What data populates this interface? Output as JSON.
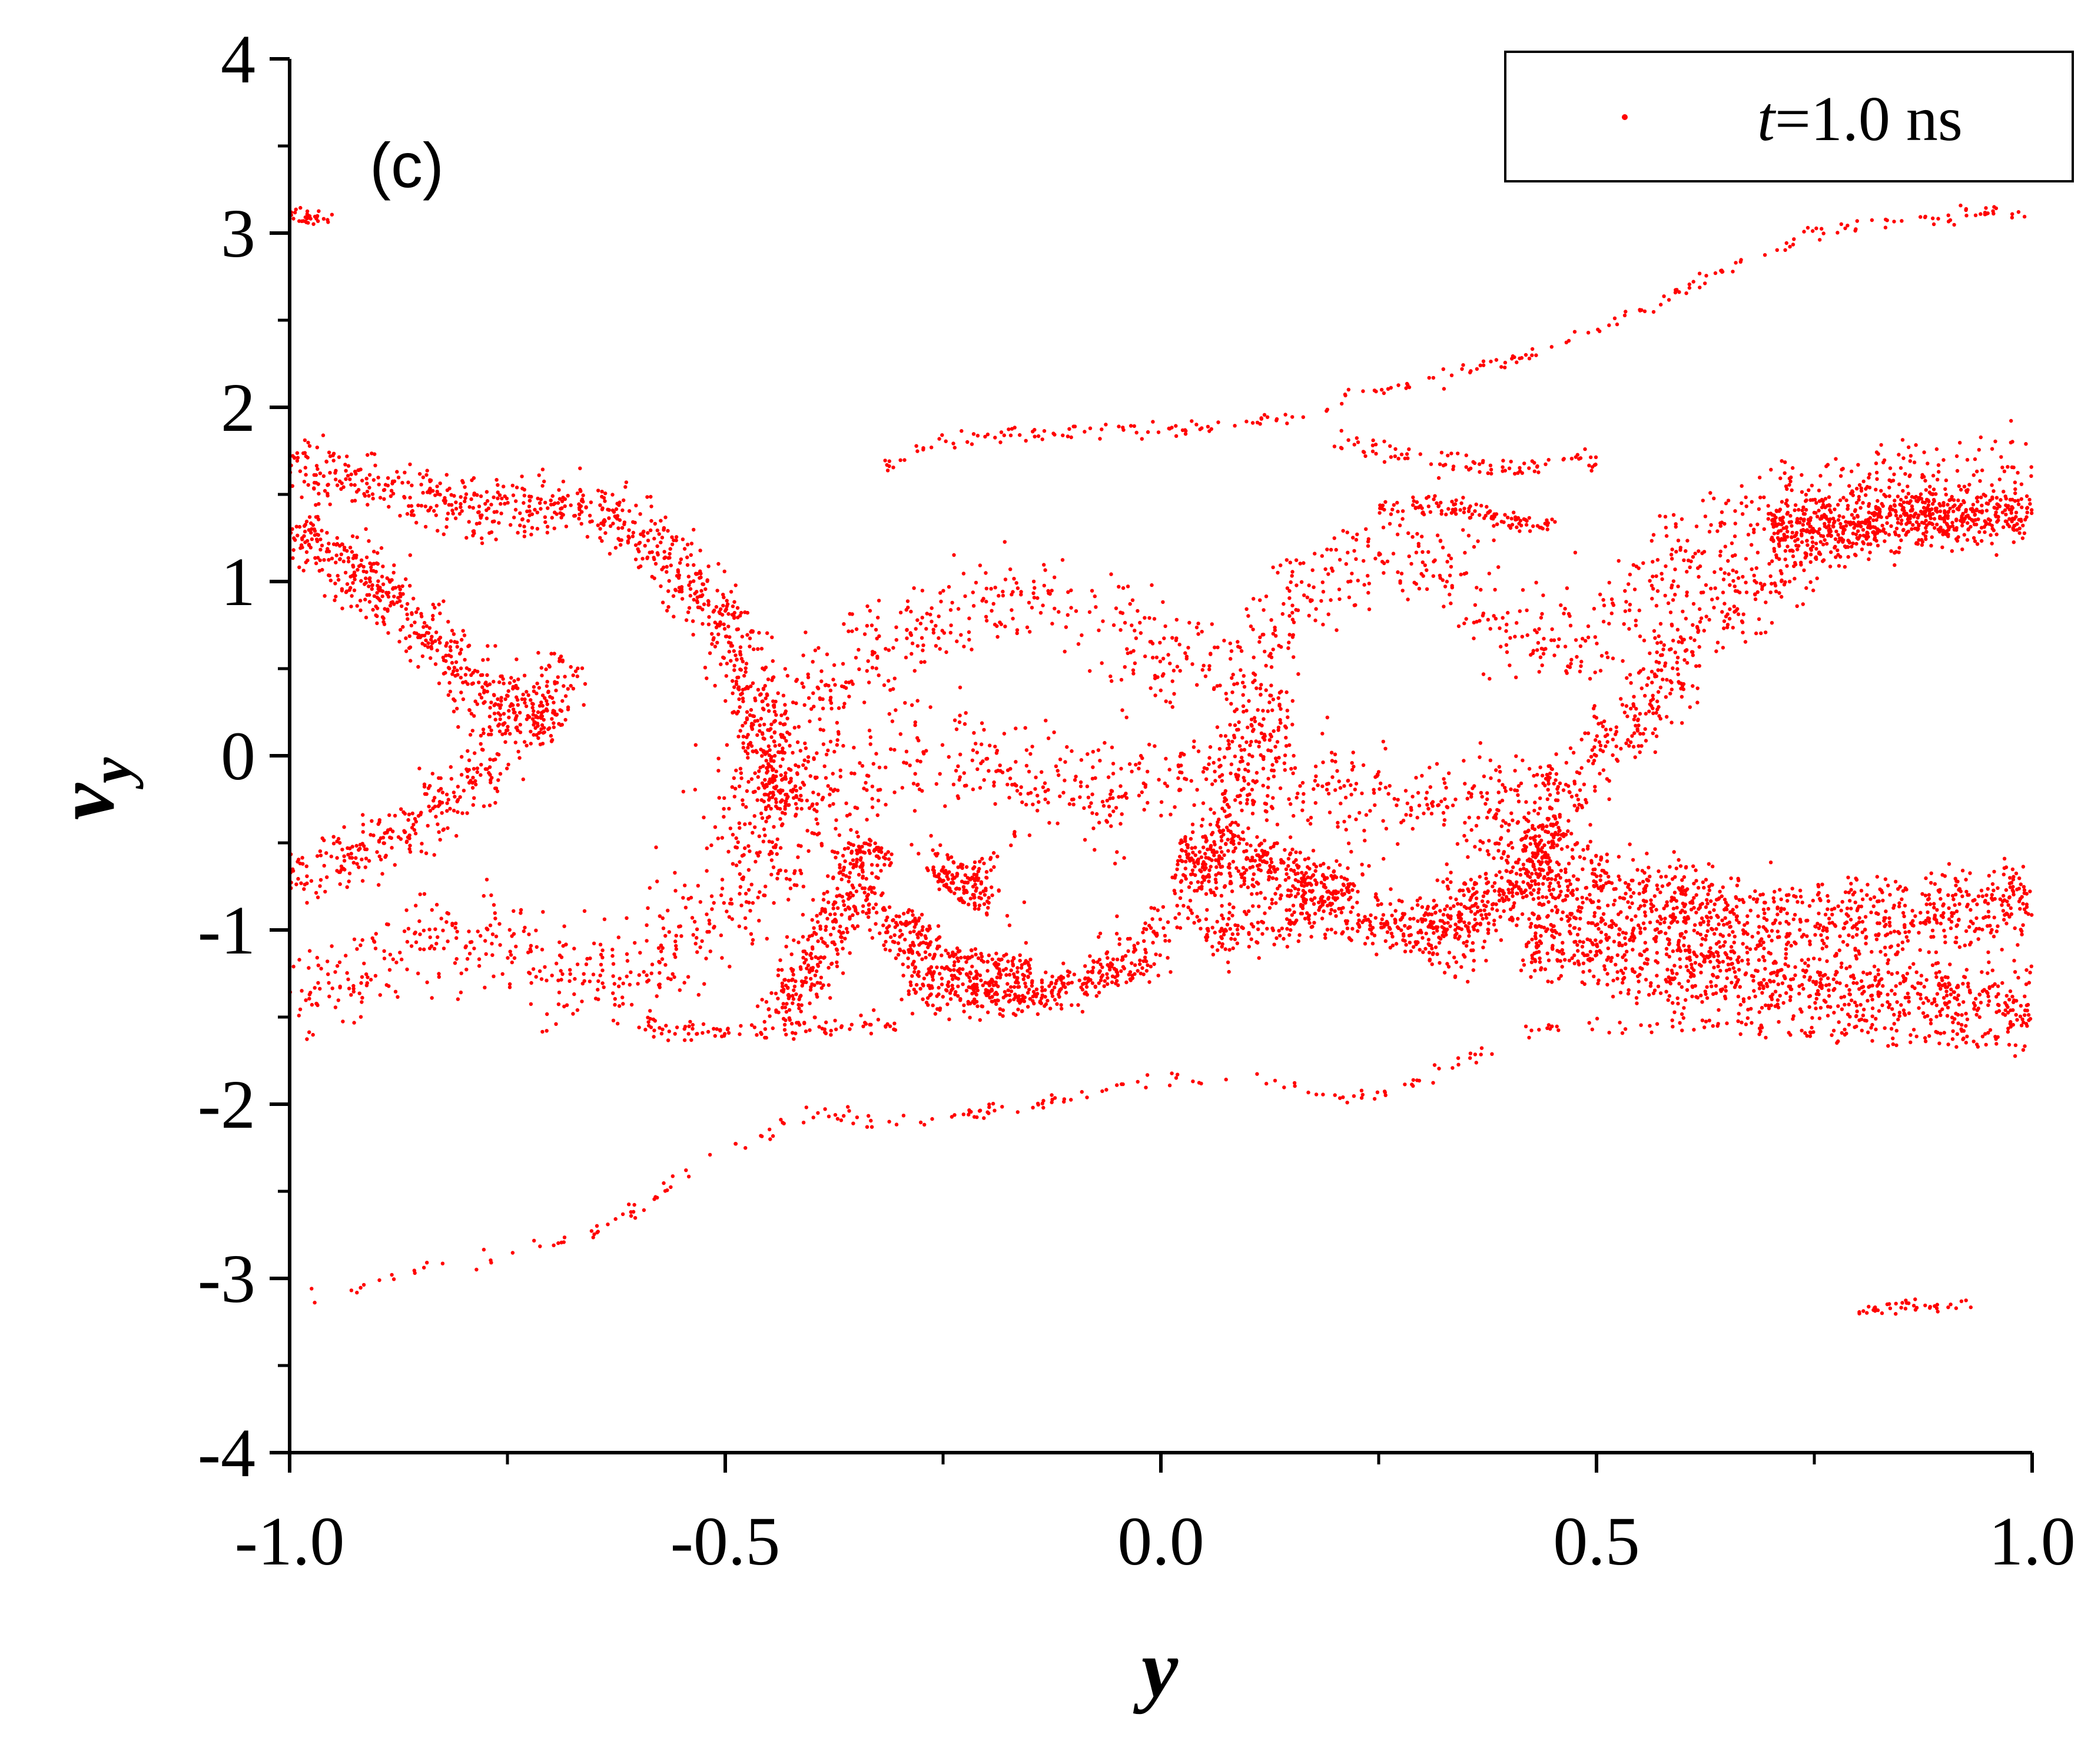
{
  "chart_data": {
    "type": "scatter",
    "panel_label": "(c)",
    "xlabel": "y",
    "ylabel": {
      "main": "v",
      "subscript": "y"
    },
    "xlim": [
      -1.0,
      1.0
    ],
    "ylim": [
      -4,
      4
    ],
    "x_ticks": [
      "-1.0",
      "-0.5",
      "0.0",
      "0.5",
      "1.0"
    ],
    "x_tick_values": [
      -1.0,
      -0.5,
      0.0,
      0.5,
      1.0
    ],
    "y_ticks": [
      "4",
      "3",
      "2",
      "1",
      "0",
      "-1",
      "-2",
      "-3",
      "-4"
    ],
    "y_tick_values": [
      4,
      3,
      2,
      1,
      0,
      -1,
      -2,
      -3,
      -4
    ],
    "grid": false,
    "legend_position": "top-right",
    "color": "#ff0000",
    "series": [
      {
        "name": "t=1.0 ns",
        "legend_italic_part": "t",
        "legend_rest": "=1.0 ns",
        "bands": [
          {
            "w": 0.04,
            "n": 900,
            "path": [
              [
                -1.0,
                1.68
              ],
              [
                -0.9,
                1.55
              ],
              [
                -0.8,
                1.4
              ],
              [
                -0.73,
                1.42
              ],
              [
                -0.66,
                1.45
              ],
              [
                -0.6,
                1.3
              ],
              [
                -0.55,
                1.05
              ],
              [
                -0.49,
                0.7
              ],
              [
                -0.46,
                0.35
              ],
              [
                -0.44,
                -0.1
              ],
              [
                -0.43,
                -0.35
              ]
            ]
          },
          {
            "w": 0.04,
            "n": 500,
            "path": [
              [
                -1.0,
                1.3
              ],
              [
                -0.93,
                1.1
              ],
              [
                -0.86,
                0.8
              ],
              [
                -0.8,
                0.5
              ],
              [
                -0.76,
                0.3
              ],
              [
                -0.69,
                0.15
              ]
            ]
          },
          {
            "w": 0.04,
            "n": 350,
            "path": [
              [
                -1.0,
                -0.75
              ],
              [
                -0.92,
                -0.55
              ],
              [
                -0.85,
                -0.4
              ],
              [
                -0.78,
                -0.1
              ],
              [
                -0.72,
                0.3
              ],
              [
                -0.68,
                0.55
              ]
            ]
          },
          {
            "w": 0.07,
            "n": 1100,
            "path": [
              [
                -1.0,
                -1.35
              ],
              [
                -0.9,
                -1.25
              ],
              [
                -0.8,
                -1.0
              ],
              [
                -0.72,
                -1.1
              ],
              [
                -0.65,
                -1.4
              ],
              [
                -0.6,
                -1.3
              ],
              [
                -0.55,
                -1.1
              ],
              [
                -0.5,
                -0.8
              ],
              [
                -0.45,
                -0.55
              ],
              [
                -0.4,
                -0.35
              ],
              [
                -0.35,
                -0.15
              ],
              [
                -0.3,
                0.05
              ],
              [
                -0.25,
                0.1
              ],
              [
                -0.2,
                0.05
              ],
              [
                -0.15,
                -0.15
              ],
              [
                -0.1,
                -0.3
              ],
              [
                -0.05,
                -0.25
              ],
              [
                0.0,
                -0.1
              ],
              [
                0.05,
                0.0
              ],
              [
                0.1,
                -0.05
              ],
              [
                0.2,
                -0.2
              ],
              [
                0.3,
                -0.3
              ],
              [
                0.4,
                -0.25
              ],
              [
                0.45,
                -0.05
              ]
            ]
          },
          {
            "w": 0.06,
            "n": 1000,
            "path": [
              [
                -0.5,
                -0.5
              ],
              [
                -0.45,
                -0.05
              ],
              [
                -0.4,
                0.3
              ],
              [
                -0.35,
                0.55
              ],
              [
                -0.3,
                0.7
              ],
              [
                -0.25,
                0.8
              ],
              [
                -0.2,
                0.9
              ],
              [
                -0.15,
                0.95
              ],
              [
                -0.1,
                0.9
              ],
              [
                -0.05,
                0.75
              ],
              [
                0.0,
                0.55
              ],
              [
                0.05,
                0.45
              ],
              [
                0.1,
                0.55
              ],
              [
                0.15,
                0.85
              ],
              [
                0.2,
                1.1
              ],
              [
                0.25,
                1.2
              ],
              [
                0.3,
                1.2
              ],
              [
                0.35,
                1.0
              ],
              [
                0.4,
                0.7
              ],
              [
                0.45,
                0.55
              ],
              [
                0.5,
                0.7
              ],
              [
                0.55,
                0.95
              ],
              [
                0.6,
                1.15
              ],
              [
                0.65,
                1.3
              ],
              [
                0.7,
                1.45
              ],
              [
                0.75,
                1.55
              ],
              [
                0.8,
                1.6
              ],
              [
                0.9,
                1.65
              ],
              [
                1.0,
                1.65
              ]
            ]
          },
          {
            "w": 0.045,
            "n": 600,
            "path": [
              [
                0.7,
                1.3
              ],
              [
                0.8,
                1.35
              ],
              [
                0.9,
                1.4
              ],
              [
                1.0,
                1.35
              ]
            ]
          },
          {
            "w": 0.05,
            "n": 700,
            "path": [
              [
                0.3,
                -1.2
              ],
              [
                0.35,
                -0.9
              ],
              [
                0.4,
                -0.6
              ],
              [
                0.45,
                -0.3
              ],
              [
                0.5,
                0.0
              ],
              [
                0.55,
                0.3
              ],
              [
                0.6,
                0.6
              ],
              [
                0.65,
                0.85
              ],
              [
                0.7,
                1.05
              ],
              [
                0.75,
                1.2
              ],
              [
                0.8,
                1.3
              ],
              [
                0.9,
                1.4
              ]
            ]
          },
          {
            "w": 0.06,
            "n": 900,
            "path": [
              [
                0.42,
                -0.65
              ],
              [
                0.5,
                -0.75
              ],
              [
                0.6,
                -0.85
              ],
              [
                0.7,
                -0.95
              ],
              [
                0.8,
                -0.95
              ],
              [
                0.9,
                -0.9
              ],
              [
                1.0,
                -0.8
              ]
            ]
          },
          {
            "w": 0.06,
            "n": 900,
            "path": [
              [
                0.42,
                -1.05
              ],
              [
                0.5,
                -1.1
              ],
              [
                0.6,
                -1.2
              ],
              [
                0.7,
                -1.3
              ],
              [
                0.8,
                -1.38
              ],
              [
                0.9,
                -1.42
              ],
              [
                1.0,
                -1.45
              ]
            ]
          },
          {
            "w": 0.04,
            "n": 500,
            "path": [
              [
                -0.3,
                -1.3
              ],
              [
                -0.2,
                -1.4
              ],
              [
                -0.1,
                -1.3
              ],
              [
                0.0,
                -1.05
              ],
              [
                0.05,
                -0.75
              ],
              [
                0.08,
                -0.4
              ],
              [
                0.1,
                -0.05
              ],
              [
                0.12,
                0.3
              ],
              [
                0.13,
                0.4
              ]
            ]
          },
          {
            "w": 0.04,
            "n": 500,
            "path": [
              [
                0.05,
                -1.05
              ],
              [
                0.15,
                -0.9
              ],
              [
                0.25,
                -0.95
              ],
              [
                0.33,
                -1.0
              ],
              [
                0.4,
                -0.8
              ],
              [
                0.45,
                -0.4
              ]
            ]
          },
          {
            "w": 0.04,
            "n": 350,
            "path": [
              [
                0.02,
                -0.55
              ],
              [
                0.1,
                -0.6
              ],
              [
                0.17,
                -0.7
              ],
              [
                0.22,
                -0.8
              ]
            ]
          },
          {
            "w": 0.03,
            "n": 280,
            "path": [
              [
                -0.44,
                -1.5
              ],
              [
                -0.4,
                -1.2
              ],
              [
                -0.37,
                -0.9
              ],
              [
                -0.35,
                -0.6
              ],
              [
                -0.32,
                -0.5
              ]
            ]
          },
          {
            "w": 0.025,
            "n": 260,
            "path": [
              [
                -0.35,
                -0.5
              ],
              [
                -0.33,
                -0.9
              ],
              [
                -0.28,
                -1.2
              ],
              [
                -0.22,
                -1.35
              ],
              [
                -0.15,
                -1.4
              ],
              [
                -0.08,
                -1.3
              ],
              [
                -0.02,
                -1.15
              ]
            ]
          },
          {
            "w": 0.025,
            "n": 180,
            "path": [
              [
                -0.3,
                -0.9
              ],
              [
                -0.27,
                -1.1
              ],
              [
                -0.22,
                -1.2
              ],
              [
                -0.15,
                -1.22
              ]
            ]
          },
          {
            "w": 0.05,
            "n": 160,
            "path": [
              [
                -0.25,
                -0.75
              ],
              [
                -0.22,
                -0.65
              ],
              [
                -0.2,
                -0.7
              ],
              [
                -0.23,
                -0.85
              ]
            ]
          },
          {
            "w": 0.012,
            "n": 260,
            "path": [
              [
                -1.0,
                -3.15
              ],
              [
                -0.9,
                -3.0
              ],
              [
                -0.8,
                -2.9
              ],
              [
                -0.7,
                -2.8
              ],
              [
                -0.65,
                -2.75
              ],
              [
                -0.6,
                -2.6
              ],
              [
                -0.55,
                -2.4
              ],
              [
                -0.5,
                -2.25
              ],
              [
                -0.45,
                -2.15
              ],
              [
                -0.4,
                -2.05
              ],
              [
                -0.3,
                -2.1
              ],
              [
                -0.2,
                -2.05
              ],
              [
                -0.1,
                -1.95
              ],
              [
                0.0,
                -1.85
              ],
              [
                0.1,
                -1.85
              ],
              [
                0.2,
                -1.95
              ],
              [
                0.25,
                -1.95
              ],
              [
                0.3,
                -1.85
              ],
              [
                0.35,
                -1.75
              ],
              [
                0.4,
                -1.6
              ],
              [
                0.45,
                -1.55
              ],
              [
                0.5,
                -1.55
              ],
              [
                0.6,
                -1.55
              ],
              [
                0.7,
                -1.55
              ],
              [
                0.8,
                -1.6
              ],
              [
                0.9,
                -1.62
              ],
              [
                1.0,
                -1.65
              ]
            ]
          },
          {
            "w": 0.012,
            "n": 240,
            "path": [
              [
                -0.33,
                1.65
              ],
              [
                -0.25,
                1.8
              ],
              [
                -0.15,
                1.85
              ],
              [
                -0.05,
                1.88
              ],
              [
                0.05,
                1.88
              ],
              [
                0.15,
                1.95
              ],
              [
                0.25,
                2.1
              ],
              [
                0.35,
                2.2
              ],
              [
                0.45,
                2.35
              ],
              [
                0.55,
                2.55
              ],
              [
                0.65,
                2.8
              ],
              [
                0.75,
                3.0
              ],
              [
                0.85,
                3.08
              ],
              [
                0.95,
                3.12
              ],
              [
                1.0,
                3.12
              ]
            ]
          },
          {
            "w": 0.01,
            "n": 30,
            "path": [
              [
                -1.0,
                3.12
              ],
              [
                -0.95,
                3.08
              ]
            ]
          },
          {
            "w": 0.01,
            "n": 40,
            "path": [
              [
                0.8,
                -3.17
              ],
              [
                0.93,
                -3.15
              ]
            ]
          },
          {
            "w": 0.015,
            "n": 120,
            "path": [
              [
                0.25,
                1.4
              ],
              [
                0.3,
                1.45
              ],
              [
                0.35,
                1.42
              ],
              [
                0.4,
                1.35
              ],
              [
                0.45,
                1.3
              ]
            ]
          },
          {
            "w": 0.015,
            "n": 100,
            "path": [
              [
                -0.6,
                -1.55
              ],
              [
                -0.5,
                -1.6
              ],
              [
                -0.4,
                -1.55
              ],
              [
                -0.3,
                -1.55
              ]
            ]
          },
          {
            "w": 0.015,
            "n": 90,
            "path": [
              [
                0.2,
                1.8
              ],
              [
                0.3,
                1.7
              ],
              [
                0.4,
                1.65
              ],
              [
                0.5,
                1.7
              ]
            ]
          }
        ]
      }
    ]
  }
}
